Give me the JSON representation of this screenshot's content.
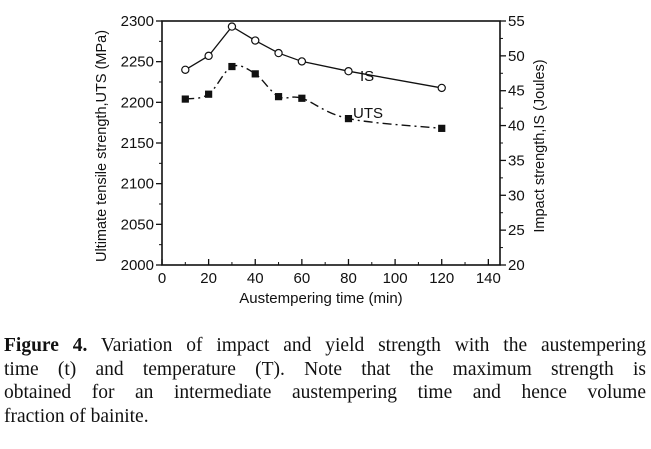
{
  "chart_data": {
    "type": "line",
    "xlabel": "Austempering time (min)",
    "ylabel_left": "Ultimate tensile strength,UTS (MPa)",
    "ylabel_right": "Impact strength,IS (Joules)",
    "xlim": [
      0,
      145
    ],
    "ylim_left": [
      2000,
      2300
    ],
    "ylim_right": [
      20,
      55
    ],
    "x_ticks": [
      "0",
      "20",
      "40",
      "60",
      "80",
      "100",
      "120",
      "140"
    ],
    "y_left_ticks": [
      "2000",
      "2050",
      "2100",
      "2150",
      "2200",
      "2250",
      "2300"
    ],
    "y_right_ticks": [
      "20",
      "25",
      "30",
      "35",
      "40",
      "45",
      "50",
      "55"
    ],
    "series": [
      {
        "name": "IS",
        "axis": "right",
        "marker": "open-circle",
        "line": "solid",
        "x": [
          10,
          20,
          30,
          40,
          50,
          60,
          80,
          120
        ],
        "y": [
          48.0,
          50.0,
          54.2,
          52.2,
          50.4,
          49.2,
          47.8,
          45.4
        ]
      },
      {
        "name": "UTS",
        "axis": "left",
        "marker": "filled-square",
        "line": "dash-dot",
        "x": [
          10,
          20,
          30,
          40,
          50,
          60,
          80,
          120
        ],
        "y": [
          2204,
          2210,
          2244,
          2235,
          2207,
          2205,
          2180,
          2168
        ]
      }
    ],
    "annotations": [
      "IS",
      "UTS"
    ]
  },
  "caption": {
    "label": "Figure 4.",
    "lines": [
      "Variation of impact and yield strength with the austempering",
      "time (t) and temperature (T). Note that the maximum strength is",
      "obtained for an intermediate austempering time and hence volume",
      "fraction of bainite."
    ]
  }
}
